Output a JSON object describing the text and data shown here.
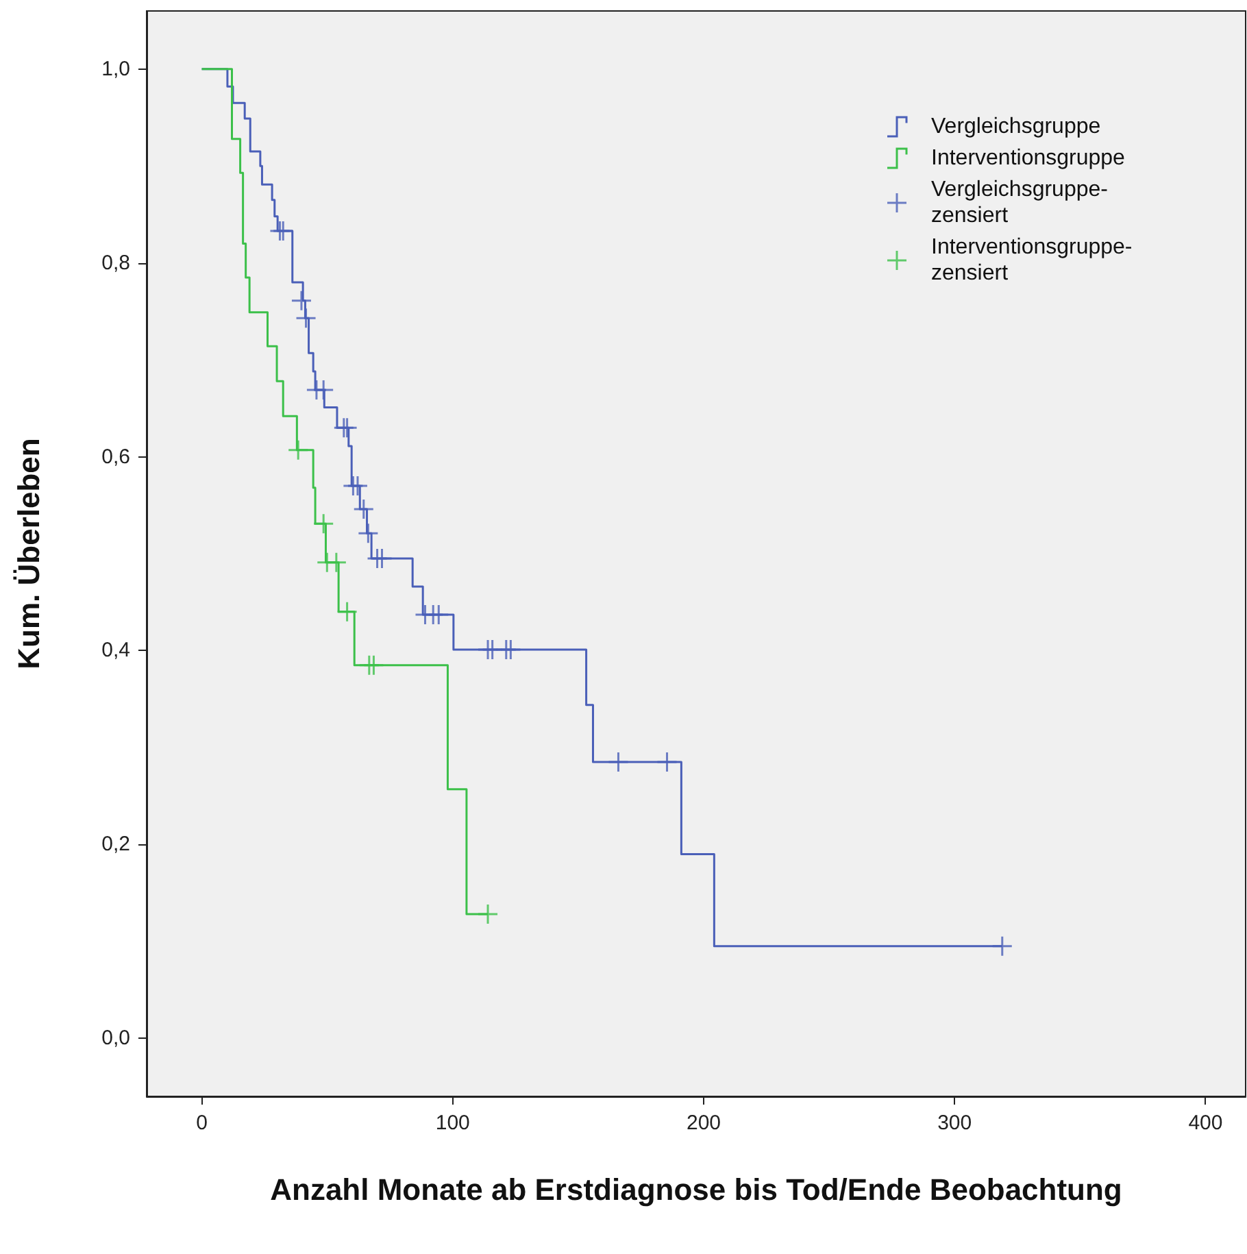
{
  "chart_data": {
    "type": "step",
    "xlabel": "Anzahl Monate ab Erstdiagnose bis Tod/Ende Beobachtung",
    "ylabel": "Kum. Überleben",
    "xlim": [
      -22,
      416
    ],
    "xticks": [
      0,
      100,
      200,
      300,
      400
    ],
    "ylim": [
      -0.06,
      1.06
    ],
    "yticks": [
      {
        "value": 0,
        "label": "0,0"
      },
      {
        "value": 0.2,
        "label": "0,2"
      },
      {
        "value": 0.4,
        "label": "0,4"
      },
      {
        "value": 0.6,
        "label": "0,6"
      },
      {
        "value": 0.8,
        "label": "0,8"
      },
      {
        "value": 1,
        "label": "1,0"
      }
    ],
    "grid": false,
    "legend": "top right",
    "series": [
      {
        "name": "Vergleichsgruppe",
        "marker": "none",
        "color": "#4a5fb8",
        "x": [
          0,
          10.2,
          12.4,
          17.1,
          19.3,
          23.3,
          24,
          28,
          29,
          30.2,
          36.1,
          40.3,
          41.2,
          42.6,
          44.4,
          45.2,
          48.8,
          53.9,
          58.5,
          59.7,
          63,
          65.8,
          67.6,
          84,
          88.1,
          100.3,
          153.2,
          155.9,
          191.1,
          204.2,
          319
        ],
        "values": [
          1,
          0.982,
          0.965,
          0.949,
          0.915,
          0.9,
          0.881,
          0.865,
          0.848,
          0.833,
          0.78,
          0.761,
          0.743,
          0.707,
          0.688,
          0.669,
          0.651,
          0.63,
          0.611,
          0.57,
          0.546,
          0.521,
          0.495,
          0.466,
          0.437,
          0.401,
          0.344,
          0.285,
          0.19,
          0.095,
          0.095
        ]
      },
      {
        "name": "Interventionsgruppe",
        "marker": "none",
        "color": "#3cc04a",
        "x": [
          0,
          12,
          15.3,
          16.4,
          17.5,
          19,
          26.2,
          29.9,
          32.4,
          37.9,
          44.4,
          45.2,
          49.4,
          54.5,
          60.8,
          98,
          105.5,
          114
        ],
        "values": [
          1,
          0.928,
          0.893,
          0.82,
          0.785,
          0.749,
          0.714,
          0.678,
          0.642,
          0.607,
          0.568,
          0.531,
          0.491,
          0.44,
          0.385,
          0.257,
          0.128,
          0.128
        ]
      },
      {
        "name": "Vergleichsgruppe-zensiert",
        "type": "scatter",
        "marker": "cross",
        "color": "#4a5fb8",
        "x": [
          31.1,
          32.4,
          39.7,
          41.5,
          45.7,
          48.5,
          56.6,
          57.9,
          60.3,
          62.1,
          64.5,
          66.3,
          69.9,
          71.8,
          89,
          92.2,
          94.4,
          114,
          115.8,
          121.3,
          123.1,
          166,
          185.4,
          319
        ],
        "values": [
          0.833,
          0.833,
          0.761,
          0.743,
          0.669,
          0.669,
          0.63,
          0.63,
          0.57,
          0.57,
          0.546,
          0.521,
          0.495,
          0.495,
          0.437,
          0.437,
          0.437,
          0.401,
          0.401,
          0.401,
          0.401,
          0.285,
          0.285,
          0.095
        ]
      },
      {
        "name": "Interventionsgruppe-zensiert",
        "type": "scatter",
        "marker": "cross",
        "color": "#3cc04a",
        "x": [
          38.4,
          48.5,
          49.9,
          53.6,
          57.9,
          66.7,
          68.5,
          114
        ],
        "values": [
          0.607,
          0.531,
          0.491,
          0.491,
          0.44,
          0.385,
          0.385,
          0.128
        ]
      }
    ]
  }
}
